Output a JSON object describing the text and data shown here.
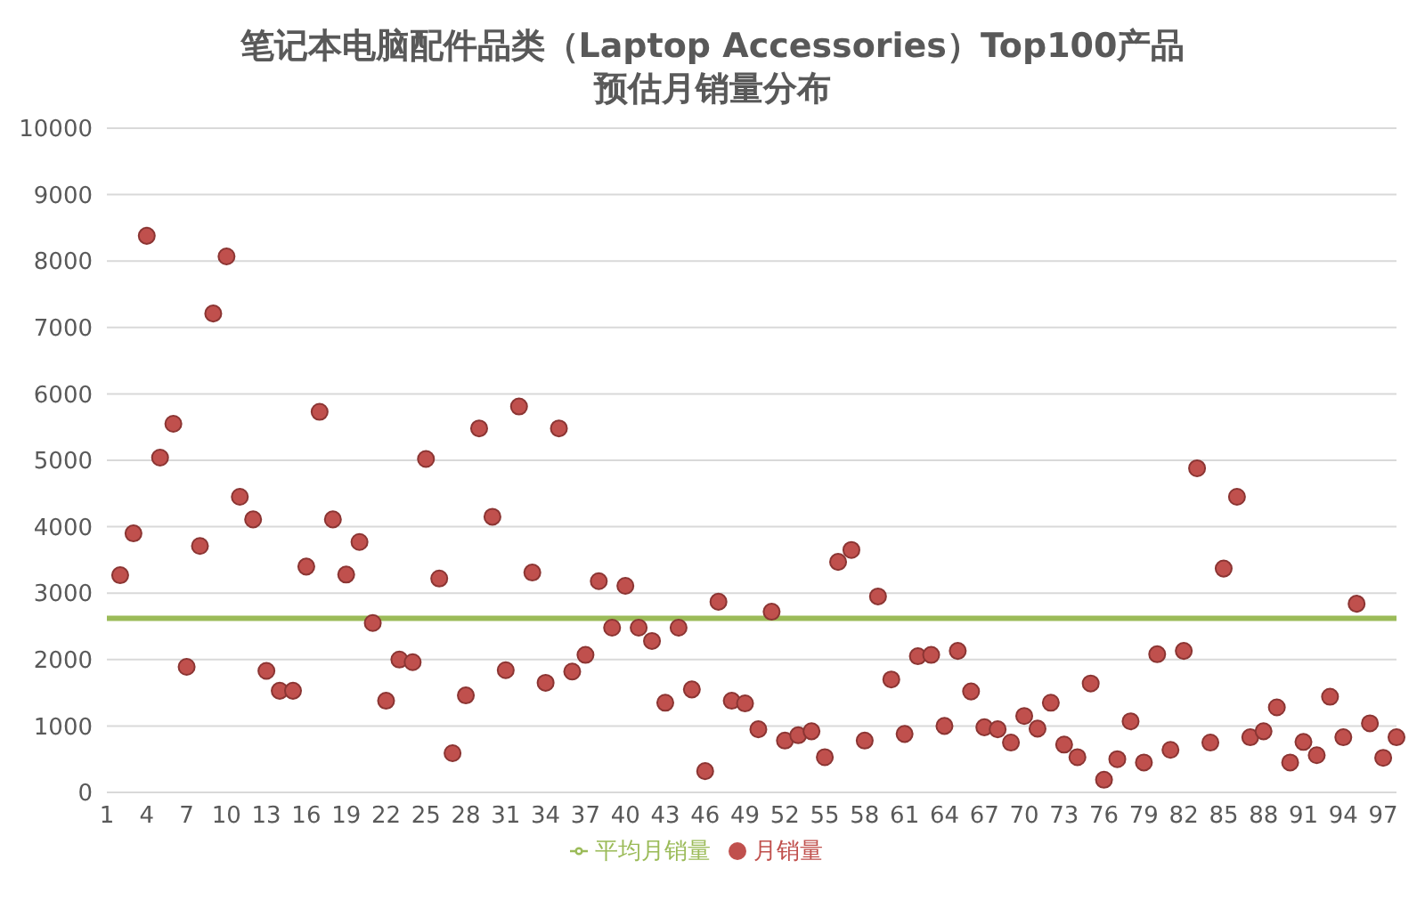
{
  "chart_data": {
    "type": "scatter",
    "title": "笔记本电脑配件品类（Laptop Accessories）Top100产品",
    "subtitle": "预估月销量分布",
    "categories": [
      "1",
      null,
      null,
      "4",
      null,
      null,
      "7",
      null,
      null,
      "10",
      null,
      null,
      "13",
      null,
      null,
      "16",
      null,
      null,
      "19",
      null,
      null,
      "22",
      null,
      null,
      "25",
      null,
      null,
      "28",
      null,
      null,
      "31",
      null,
      null,
      "34",
      null,
      null,
      "37",
      null,
      null,
      "40",
      null,
      null,
      "43",
      null,
      null,
      "46",
      null,
      null,
      "49",
      null,
      null,
      "52",
      null,
      null,
      "55",
      null,
      null,
      "58",
      null,
      null,
      "61",
      null,
      null,
      "64",
      null,
      null,
      "67",
      null,
      null,
      "70",
      null,
      null,
      "73",
      null,
      null,
      "76",
      null,
      null,
      "79",
      null,
      null,
      "82",
      null,
      null,
      "85",
      null,
      null,
      "88",
      null,
      null,
      "91",
      null,
      null,
      "94",
      null,
      null,
      "97",
      null
    ],
    "series": [
      {
        "name": "平均月销量",
        "type": "line",
        "marker": "none",
        "color": "#9bbb59",
        "values": [
          2620,
          2620,
          2620,
          2620,
          2620,
          2620,
          2620,
          2620,
          2620,
          2620,
          2620,
          2620,
          2620,
          2620,
          2620,
          2620,
          2620,
          2620,
          2620,
          2620,
          2620,
          2620,
          2620,
          2620,
          2620,
          2620,
          2620,
          2620,
          2620,
          2620,
          2620,
          2620,
          2620,
          2620,
          2620,
          2620,
          2620,
          2620,
          2620,
          2620,
          2620,
          2620,
          2620,
          2620,
          2620,
          2620,
          2620,
          2620,
          2620,
          2620,
          2620,
          2620,
          2620,
          2620,
          2620,
          2620,
          2620,
          2620,
          2620,
          2620,
          2620,
          2620,
          2620,
          2620,
          2620,
          2620,
          2620,
          2620,
          2620,
          2620,
          2620,
          2620,
          2620,
          2620,
          2620,
          2620,
          2620,
          2620,
          2620,
          2620,
          2620,
          2620,
          2620,
          2620,
          2620,
          2620,
          2620,
          2620,
          2620,
          2620,
          2620,
          2620,
          2620,
          2620,
          2620,
          2620,
          2620,
          2620
        ]
      },
      {
        "name": "月销量",
        "marker": "circle",
        "color": "#c0504d",
        "values": [
          null,
          3270,
          3900,
          8380,
          5040,
          5550,
          1890,
          3710,
          7210,
          8070,
          4450,
          4110,
          1830,
          1530,
          1530,
          3400,
          5730,
          4110,
          3280,
          3770,
          2550,
          1380,
          2000,
          1960,
          5020,
          3220,
          590,
          1460,
          5480,
          4150,
          1840,
          5810,
          3310,
          1650,
          5480,
          1820,
          2070,
          3180,
          2480,
          3110,
          2480,
          2280,
          1350,
          2480,
          1550,
          320,
          2870,
          1380,
          1340,
          950,
          2720,
          780,
          860,
          920,
          530,
          3470,
          3650,
          780,
          2950,
          1700,
          880,
          2050,
          2070,
          1000,
          2130,
          1520,
          980,
          950,
          750,
          1150,
          960,
          1350,
          720,
          530,
          1640,
          190,
          500,
          1070,
          450,
          2080,
          640,
          2130,
          4880,
          750,
          3370,
          4450,
          830,
          920,
          1280,
          450,
          760,
          560,
          1440,
          830,
          2840,
          1040,
          520,
          830
        ]
      }
    ],
    "ylim": [
      0,
      10000
    ],
    "yticks": [
      0,
      1000,
      2000,
      3000,
      4000,
      5000,
      6000,
      7000,
      8000,
      9000,
      10000
    ],
    "grid": "y",
    "legend": "bottom"
  }
}
